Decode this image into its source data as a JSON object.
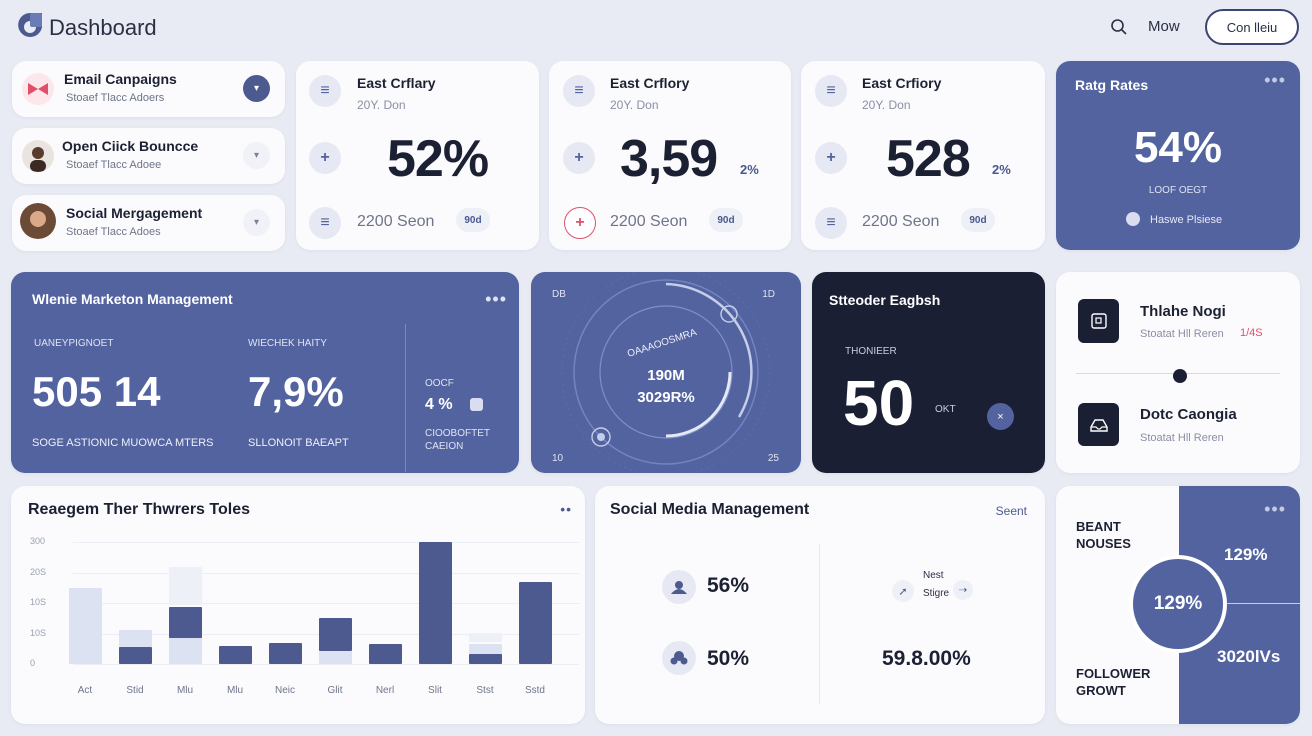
{
  "header": {
    "title": "Dashboard",
    "nav_now": "Mow",
    "cta_label": "Con lleiu"
  },
  "campaigns": [
    {
      "title": "Email Canpaigns",
      "subtitle": "Stoaef Tlacc Adoers",
      "icon": "bowtie-icon"
    },
    {
      "title": "Open Ciick Bouncce",
      "subtitle": "Stoaef Tlacc Adoee",
      "icon": "avatar"
    },
    {
      "title": "Social Mergagement",
      "subtitle": "Stoaef Tlacc Adoes",
      "icon": "avatar"
    }
  ],
  "stats": [
    {
      "name": "East Crflary",
      "sub": "20Y. Don",
      "value": "52%",
      "pct": "",
      "foot": "2200 Seon",
      "pill": "90d"
    },
    {
      "name": "East Crflory",
      "sub": "20Y. Don",
      "value": "3,59",
      "pct": "2%",
      "foot": "2200 Seon",
      "pill": "90d"
    },
    {
      "name": "East Crfiory",
      "sub": "20Y. Don",
      "value": "528",
      "pct": "2%",
      "foot": "2200 Seon",
      "pill": "90d"
    }
  ],
  "rate_card": {
    "title": "Ratg Rates",
    "value": "54%",
    "sub": "LOOF OEGT",
    "foot": "Haswe Plsiese"
  },
  "marketing": {
    "title": "Wlenie Marketon Management",
    "col1_label": "UANEYPIGNOET",
    "col1_value": "505 14",
    "col1_foot": "SOGE ASTIONIC MUOWCA MTERS",
    "col2_label": "WIECHEK HAITY",
    "col2_value": "7,9%",
    "col2_foot": "SLLONOIT BAEAPT",
    "col3_label": "OOCF",
    "col3_value": "4 %",
    "col3_foot": "CIOOBOFTET CAEION"
  },
  "gauge": {
    "ring_text": "OAAAOOSMRA",
    "line1": "190M",
    "line2": "3029R%",
    "tl": "DB",
    "tr": "1D",
    "bl": "10",
    "br": "25"
  },
  "dark_card": {
    "title": "Stteoder Eagbsh",
    "label": "THONIEER",
    "value": "50",
    "unit": "OKT"
  },
  "people_card": {
    "items": [
      {
        "name": "Thlahe Nogi",
        "sub": "Stoatat Hll Reren",
        "badge": "1/4S"
      },
      {
        "name": "Dotc Caongia",
        "sub": "Stoatat Hll Reren",
        "badge": ""
      }
    ]
  },
  "bar_chart": {
    "title": "Reaegem Ther Thwrers Toles"
  },
  "chart_data": {
    "type": "bar",
    "title": "Reaegem Ther Thwrers Toles",
    "categories": [
      "Act",
      "Stid",
      "Mlu",
      "Mlu",
      "Neic",
      "Glit",
      "Nerl",
      "Slit",
      "Stst",
      "Sstd"
    ],
    "tick_labels": [
      "300",
      "20S",
      "10S",
      "10S",
      "0"
    ],
    "series": [
      {
        "values": [
          0.62,
          0.28,
          0.47,
          0.0,
          0.0,
          0.38,
          0.0,
          0.0,
          0.16,
          0.0
        ]
      },
      {
        "values": [
          0.0,
          0.14,
          0.26,
          0.15,
          0.17,
          0.27,
          0.16,
          1.0,
          0.08,
          0.67
        ]
      },
      {
        "values": [
          0.0,
          0.0,
          0.31,
          0.0,
          0.0,
          0.0,
          0.0,
          0.0,
          0.08,
          0.0
        ]
      }
    ],
    "ylim": [
      0,
      1
    ],
    "grid": true
  },
  "social": {
    "title": "Social Media Management",
    "link": "Seent",
    "m1": "56%",
    "m2": "50%",
    "next_label": "Nest",
    "next_sub": "Stigre",
    "m3": "59.8.00%"
  },
  "follower": {
    "title": "BEANT NOUSES",
    "circle": "129%",
    "top_right": "129%",
    "foot": "FOLLOWER GROWT",
    "bottom_right": "3020lVs"
  },
  "colors": {
    "accent": "#5263a0",
    "dark": "#1b1f33",
    "light_bar": "#dde2f2",
    "background": "#e8ebf3"
  }
}
